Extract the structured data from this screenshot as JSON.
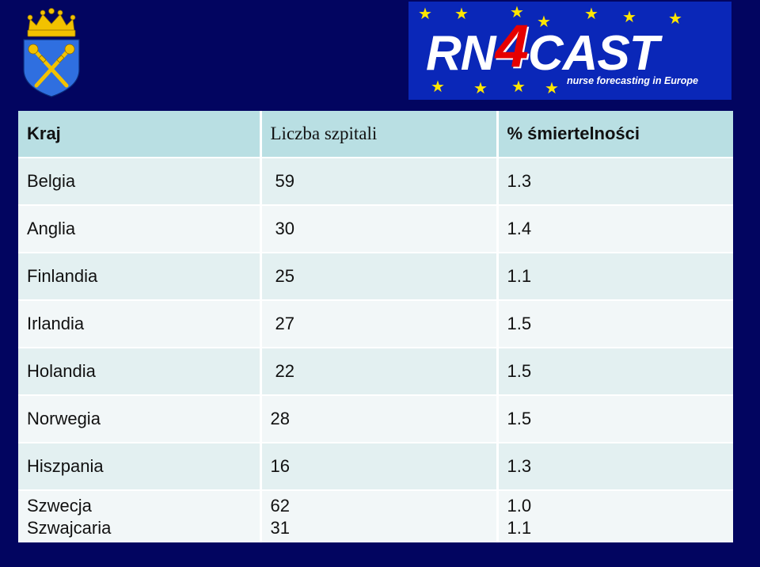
{
  "table": {
    "headers": [
      "Kraj",
      "Liczba szpitali",
      "% śmiertelności"
    ],
    "rows": [
      {
        "kraj": "Belgia",
        "liczba": "59",
        "proc": "1.3"
      },
      {
        "kraj": "Anglia",
        "liczba": "30",
        "proc": "1.4"
      },
      {
        "kraj": "Finlandia",
        "liczba": "25",
        "proc": "1.1"
      },
      {
        "kraj": "Irlandia",
        "liczba": "27",
        "proc": "1.5"
      },
      {
        "kraj": "Holandia",
        "liczba": "22",
        "proc": "1.5"
      },
      {
        "kraj": "Norwegia",
        "liczba": "28",
        "proc": "1.5"
      },
      {
        "kraj": "Hiszpania",
        "liczba": "16",
        "proc": "1.3"
      },
      {
        "kraj": [
          "Szwecja",
          "Szwajcaria"
        ],
        "liczba": [
          "62",
          "31"
        ],
        "proc": [
          "1.0",
          "1.1"
        ]
      }
    ]
  },
  "logo": {
    "name_part1": "RN",
    "name_part2": "4",
    "name_part3": "CAST",
    "tagline": "nurse forecasting in Europe"
  },
  "colors": {
    "background": "#020560",
    "header_row": "#b9dfe3",
    "row_odd": "#e3f0f1",
    "row_even": "#f2f7f8",
    "logo_blue": "#0a27b8",
    "logo_star": "#ffe600",
    "logo_four": "#e60000",
    "crest_shield": "#2f6fe0",
    "crest_gold": "#f2c200"
  },
  "icons": {
    "crest": "university-crest-icon",
    "star": "eu-star-icon"
  }
}
